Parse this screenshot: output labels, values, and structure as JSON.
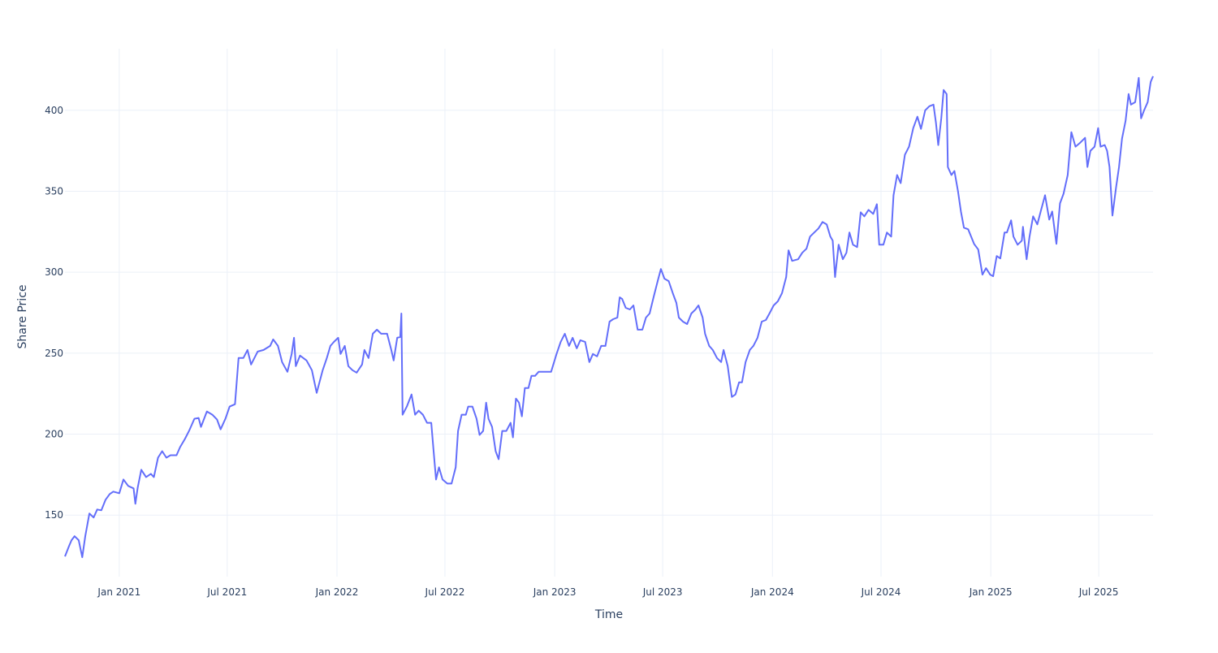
{
  "chart_data": {
    "type": "line",
    "title": "",
    "xlabel": "Time",
    "ylabel": "Share Price",
    "xlim": [
      "2020-10-02",
      "2025-09-30"
    ],
    "ylim": [
      112,
      438
    ],
    "grid": true,
    "line_color": "#636efa",
    "x_ticks": [
      {
        "date": "2021-01-01",
        "label": "Jan 2021"
      },
      {
        "date": "2021-07-01",
        "label": "Jul 2021"
      },
      {
        "date": "2022-01-01",
        "label": "Jan 2022"
      },
      {
        "date": "2022-07-01",
        "label": "Jul 2022"
      },
      {
        "date": "2023-01-01",
        "label": "Jan 2023"
      },
      {
        "date": "2023-07-01",
        "label": "Jul 2023"
      },
      {
        "date": "2024-01-01",
        "label": "Jan 2024"
      },
      {
        "date": "2024-07-01",
        "label": "Jul 2024"
      },
      {
        "date": "2025-01-01",
        "label": "Jan 2025"
      },
      {
        "date": "2025-07-01",
        "label": "Jul 2025"
      }
    ],
    "y_ticks": [
      150,
      200,
      250,
      300,
      350,
      400
    ],
    "points": [
      [
        "2020-10-02",
        124.5
      ],
      [
        "2020-10-09",
        131
      ],
      [
        "2020-10-13",
        134.5
      ],
      [
        "2020-10-18",
        137
      ],
      [
        "2020-10-25",
        134.5
      ],
      [
        "2020-10-31",
        124
      ],
      [
        "2020-11-05",
        137
      ],
      [
        "2020-11-12",
        151
      ],
      [
        "2020-11-19",
        148.5
      ],
      [
        "2020-11-25",
        153.5
      ],
      [
        "2020-12-02",
        153
      ],
      [
        "2020-12-09",
        159.5
      ],
      [
        "2020-12-16",
        163
      ],
      [
        "2020-12-22",
        164.5
      ],
      [
        "2021-01-01",
        163.5
      ],
      [
        "2021-01-08",
        172
      ],
      [
        "2021-01-16",
        168
      ],
      [
        "2021-01-25",
        166.5
      ],
      [
        "2021-01-28",
        157
      ],
      [
        "2021-02-01",
        167
      ],
      [
        "2021-02-07",
        178
      ],
      [
        "2021-02-15",
        173.5
      ],
      [
        "2021-02-23",
        175.5
      ],
      [
        "2021-02-28",
        173.5
      ],
      [
        "2021-03-07",
        185.5
      ],
      [
        "2021-03-14",
        189.5
      ],
      [
        "2021-03-21",
        185.5
      ],
      [
        "2021-03-28",
        187
      ],
      [
        "2021-04-07",
        187
      ],
      [
        "2021-04-13",
        192
      ],
      [
        "2021-04-21",
        197
      ],
      [
        "2021-04-28",
        202
      ],
      [
        "2021-05-07",
        209.5
      ],
      [
        "2021-05-14",
        210
      ],
      [
        "2021-05-18",
        204.5
      ],
      [
        "2021-05-28",
        214
      ],
      [
        "2021-06-06",
        212
      ],
      [
        "2021-06-14",
        209
      ],
      [
        "2021-06-20",
        203
      ],
      [
        "2021-06-28",
        209.5
      ],
      [
        "2021-07-05",
        217
      ],
      [
        "2021-07-14",
        218.5
      ],
      [
        "2021-07-20",
        247
      ],
      [
        "2021-07-28",
        247
      ],
      [
        "2021-08-04",
        252
      ],
      [
        "2021-08-10",
        243
      ],
      [
        "2021-08-21",
        251
      ],
      [
        "2021-08-31",
        252
      ],
      [
        "2021-09-11",
        254.5
      ],
      [
        "2021-09-16",
        258.5
      ],
      [
        "2021-09-24",
        254.5
      ],
      [
        "2021-10-01",
        244.5
      ],
      [
        "2021-10-10",
        238.5
      ],
      [
        "2021-10-17",
        249.5
      ],
      [
        "2021-10-21",
        259.5
      ],
      [
        "2021-10-24",
        242
      ],
      [
        "2021-10-31",
        248.5
      ],
      [
        "2021-11-11",
        245.5
      ],
      [
        "2021-11-20",
        239.5
      ],
      [
        "2021-11-28",
        225.5
      ],
      [
        "2021-12-08",
        239.5
      ],
      [
        "2021-12-15",
        247
      ],
      [
        "2021-12-21",
        254.5
      ],
      [
        "2021-12-27",
        257
      ],
      [
        "2022-01-03",
        259.5
      ],
      [
        "2022-01-07",
        249.5
      ],
      [
        "2022-01-14",
        254.5
      ],
      [
        "2022-01-20",
        242
      ],
      [
        "2022-01-27",
        239.5
      ],
      [
        "2022-02-03",
        238
      ],
      [
        "2022-02-12",
        243
      ],
      [
        "2022-02-16",
        252
      ],
      [
        "2022-02-23",
        247
      ],
      [
        "2022-03-02",
        262
      ],
      [
        "2022-03-09",
        264.5
      ],
      [
        "2022-03-16",
        262
      ],
      [
        "2022-03-26",
        262
      ],
      [
        "2022-04-02",
        252
      ],
      [
        "2022-04-06",
        245.5
      ],
      [
        "2022-04-12",
        259.5
      ],
      [
        "2022-04-17",
        260
      ],
      [
        "2022-04-19",
        274.5
      ],
      [
        "2022-04-21",
        212
      ],
      [
        "2022-04-28",
        217
      ],
      [
        "2022-05-06",
        224.5
      ],
      [
        "2022-05-12",
        212
      ],
      [
        "2022-05-18",
        214.5
      ],
      [
        "2022-05-25",
        212
      ],
      [
        "2022-06-01",
        207
      ],
      [
        "2022-06-08",
        207
      ],
      [
        "2022-06-12",
        189.5
      ],
      [
        "2022-06-16",
        172
      ],
      [
        "2022-06-21",
        179.5
      ],
      [
        "2022-06-27",
        172
      ],
      [
        "2022-07-05",
        169.5
      ],
      [
        "2022-07-12",
        169.5
      ],
      [
        "2022-07-19",
        179.5
      ],
      [
        "2022-07-23",
        202
      ],
      [
        "2022-07-29",
        212
      ],
      [
        "2022-08-05",
        212
      ],
      [
        "2022-08-09",
        217
      ],
      [
        "2022-08-16",
        217
      ],
      [
        "2022-08-23",
        209.5
      ],
      [
        "2022-08-28",
        199.5
      ],
      [
        "2022-09-03",
        202
      ],
      [
        "2022-09-08",
        219.5
      ],
      [
        "2022-09-12",
        209.5
      ],
      [
        "2022-09-18",
        204.5
      ],
      [
        "2022-09-24",
        189.5
      ],
      [
        "2022-09-29",
        184.5
      ],
      [
        "2022-10-05",
        202
      ],
      [
        "2022-10-12",
        202
      ],
      [
        "2022-10-19",
        207
      ],
      [
        "2022-10-23",
        198
      ],
      [
        "2022-10-28",
        222
      ],
      [
        "2022-11-02",
        219.5
      ],
      [
        "2022-11-07",
        211
      ],
      [
        "2022-11-12",
        228.5
      ],
      [
        "2022-11-18",
        228.5
      ],
      [
        "2022-11-23",
        236
      ],
      [
        "2022-11-29",
        236
      ],
      [
        "2022-12-05",
        238.5
      ],
      [
        "2022-12-15",
        238.5
      ],
      [
        "2022-12-26",
        238.5
      ],
      [
        "2023-01-04",
        249.5
      ],
      [
        "2023-01-11",
        257
      ],
      [
        "2023-01-18",
        262
      ],
      [
        "2023-01-25",
        254.5
      ],
      [
        "2023-01-31",
        259.5
      ],
      [
        "2023-02-07",
        253
      ],
      [
        "2023-02-13",
        258
      ],
      [
        "2023-02-21",
        257
      ],
      [
        "2023-02-28",
        244.5
      ],
      [
        "2023-03-06",
        249.5
      ],
      [
        "2023-03-13",
        248
      ],
      [
        "2023-03-20",
        254.5
      ],
      [
        "2023-03-27",
        254.5
      ],
      [
        "2023-04-03",
        269.5
      ],
      [
        "2023-04-09",
        271
      ],
      [
        "2023-04-16",
        272
      ],
      [
        "2023-04-20",
        284.5
      ],
      [
        "2023-04-24",
        283.5
      ],
      [
        "2023-04-30",
        278
      ],
      [
        "2023-05-07",
        277
      ],
      [
        "2023-05-13",
        279.5
      ],
      [
        "2023-05-20",
        264.5
      ],
      [
        "2023-05-28",
        264.5
      ],
      [
        "2023-06-03",
        272
      ],
      [
        "2023-06-09",
        274.5
      ],
      [
        "2023-06-16",
        285
      ],
      [
        "2023-06-23",
        295
      ],
      [
        "2023-06-28",
        302
      ],
      [
        "2023-07-04",
        296
      ],
      [
        "2023-07-11",
        294.5
      ],
      [
        "2023-07-18",
        287
      ],
      [
        "2023-07-24",
        281
      ],
      [
        "2023-07-28",
        272
      ],
      [
        "2023-08-04",
        269.5
      ],
      [
        "2023-08-11",
        268
      ],
      [
        "2023-08-18",
        274.5
      ],
      [
        "2023-08-25",
        277
      ],
      [
        "2023-08-30",
        279.5
      ],
      [
        "2023-09-06",
        272
      ],
      [
        "2023-09-10",
        262
      ],
      [
        "2023-09-17",
        254.5
      ],
      [
        "2023-09-23",
        252
      ],
      [
        "2023-09-30",
        247
      ],
      [
        "2023-10-07",
        244.5
      ],
      [
        "2023-10-11",
        252
      ],
      [
        "2023-10-18",
        242
      ],
      [
        "2023-10-25",
        223
      ],
      [
        "2023-10-31",
        224.5
      ],
      [
        "2023-11-06",
        232
      ],
      [
        "2023-11-11",
        232
      ],
      [
        "2023-11-17",
        244.5
      ],
      [
        "2023-11-24",
        252
      ],
      [
        "2023-11-30",
        254.5
      ],
      [
        "2023-12-07",
        259.5
      ],
      [
        "2023-12-14",
        269.5
      ],
      [
        "2023-12-21",
        270.5
      ],
      [
        "2023-12-27",
        274.5
      ],
      [
        "2024-01-03",
        279.5
      ],
      [
        "2024-01-10",
        282
      ],
      [
        "2024-01-17",
        287
      ],
      [
        "2024-01-24",
        297
      ],
      [
        "2024-01-28",
        313.5
      ],
      [
        "2024-02-03",
        307
      ],
      [
        "2024-02-13",
        308
      ],
      [
        "2024-02-20",
        312
      ],
      [
        "2024-02-27",
        314.5
      ],
      [
        "2024-03-04",
        322
      ],
      [
        "2024-03-11",
        324.5
      ],
      [
        "2024-03-18",
        327
      ],
      [
        "2024-03-25",
        331
      ],
      [
        "2024-04-01",
        329.5
      ],
      [
        "2024-04-07",
        322
      ],
      [
        "2024-04-11",
        319.5
      ],
      [
        "2024-04-15",
        297
      ],
      [
        "2024-04-21",
        317
      ],
      [
        "2024-04-28",
        308
      ],
      [
        "2024-05-04",
        312
      ],
      [
        "2024-05-09",
        324.5
      ],
      [
        "2024-05-15",
        317
      ],
      [
        "2024-05-22",
        315.5
      ],
      [
        "2024-05-28",
        337
      ],
      [
        "2024-06-03",
        334.5
      ],
      [
        "2024-06-10",
        338.5
      ],
      [
        "2024-06-18",
        336
      ],
      [
        "2024-06-24",
        342
      ],
      [
        "2024-06-28",
        317
      ],
      [
        "2024-07-05",
        317
      ],
      [
        "2024-07-11",
        324.5
      ],
      [
        "2024-07-18",
        322
      ],
      [
        "2024-07-22",
        347.5
      ],
      [
        "2024-07-28",
        360
      ],
      [
        "2024-08-03",
        355
      ],
      [
        "2024-08-10",
        372.5
      ],
      [
        "2024-08-17",
        377.5
      ],
      [
        "2024-08-24",
        389
      ],
      [
        "2024-08-31",
        396
      ],
      [
        "2024-09-06",
        388.5
      ],
      [
        "2024-09-13",
        400
      ],
      [
        "2024-09-20",
        402.5
      ],
      [
        "2024-09-27",
        403.5
      ],
      [
        "2024-10-01",
        392.5
      ],
      [
        "2024-10-05",
        378.5
      ],
      [
        "2024-10-10",
        395
      ],
      [
        "2024-10-14",
        412.5
      ],
      [
        "2024-10-19",
        410
      ],
      [
        "2024-10-21",
        365
      ],
      [
        "2024-10-27",
        360
      ],
      [
        "2024-11-01",
        362.5
      ],
      [
        "2024-11-07",
        350
      ],
      [
        "2024-11-12",
        337.5
      ],
      [
        "2024-11-17",
        327.5
      ],
      [
        "2024-11-24",
        326.5
      ],
      [
        "2024-12-04",
        317.5
      ],
      [
        "2024-12-11",
        314
      ],
      [
        "2024-12-18",
        298.5
      ],
      [
        "2024-12-24",
        302.5
      ],
      [
        "2024-12-31",
        298.5
      ],
      [
        "2025-01-05",
        297.5
      ],
      [
        "2025-01-11",
        310
      ],
      [
        "2025-01-17",
        308.5
      ],
      [
        "2025-01-24",
        324.5
      ],
      [
        "2025-01-28",
        324.5
      ],
      [
        "2025-02-04",
        332
      ],
      [
        "2025-02-08",
        322
      ],
      [
        "2025-02-15",
        317
      ],
      [
        "2025-02-22",
        319.5
      ],
      [
        "2025-02-24",
        328
      ],
      [
        "2025-03-02",
        308
      ],
      [
        "2025-03-07",
        322
      ],
      [
        "2025-03-13",
        334.5
      ],
      [
        "2025-03-20",
        329.5
      ],
      [
        "2025-03-26",
        338
      ],
      [
        "2025-04-02",
        347.5
      ],
      [
        "2025-04-09",
        332.5
      ],
      [
        "2025-04-14",
        337.5
      ],
      [
        "2025-04-21",
        317.5
      ],
      [
        "2025-04-27",
        342.5
      ],
      [
        "2025-05-03",
        348.5
      ],
      [
        "2025-05-10",
        360
      ],
      [
        "2025-05-16",
        386.5
      ],
      [
        "2025-05-23",
        377.5
      ],
      [
        "2025-05-31",
        380
      ],
      [
        "2025-06-08",
        383
      ],
      [
        "2025-06-12",
        365
      ],
      [
        "2025-06-17",
        375
      ],
      [
        "2025-06-24",
        377.5
      ],
      [
        "2025-06-30",
        389
      ],
      [
        "2025-07-04",
        377.5
      ],
      [
        "2025-07-11",
        378.5
      ],
      [
        "2025-07-15",
        375
      ],
      [
        "2025-07-19",
        365
      ],
      [
        "2025-07-24",
        335
      ],
      [
        "2025-07-30",
        352.5
      ],
      [
        "2025-08-04",
        365
      ],
      [
        "2025-08-09",
        382.5
      ],
      [
        "2025-08-15",
        393.5
      ],
      [
        "2025-08-20",
        410
      ],
      [
        "2025-08-24",
        403.5
      ],
      [
        "2025-08-31",
        405
      ],
      [
        "2025-09-06",
        420
      ],
      [
        "2025-09-10",
        395
      ],
      [
        "2025-09-15",
        400
      ],
      [
        "2025-09-21",
        405
      ],
      [
        "2025-09-26",
        417.5
      ],
      [
        "2025-09-30",
        421
      ]
    ]
  }
}
